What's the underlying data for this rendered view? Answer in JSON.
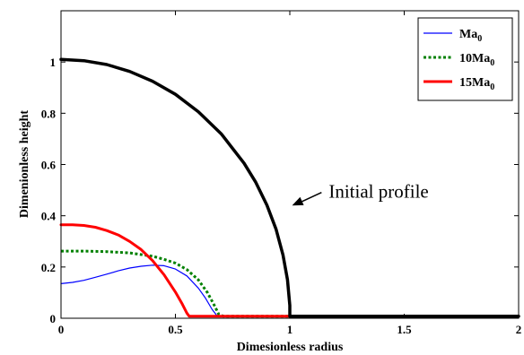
{
  "chart_data": {
    "type": "line",
    "xlabel": "Dimesionless radius",
    "ylabel": "Dimenionless height",
    "xlim": [
      0,
      2
    ],
    "ylim": [
      0,
      1.2
    ],
    "xticks": [
      0,
      0.5,
      1,
      1.5,
      2
    ],
    "xtick_labels": [
      "0",
      "0.5",
      "1",
      "1.5",
      "2"
    ],
    "yticks": [
      0,
      0.2,
      0.4,
      0.6,
      0.8,
      1
    ],
    "ytick_labels": [
      "0",
      "0.2",
      "0.4",
      "0.6",
      "0.8",
      "1"
    ],
    "grid": false,
    "legend_position": "top-right",
    "series": [
      {
        "name": "Ma",
        "sub": "0",
        "color": "#0000ff",
        "style": "solid",
        "width": 1.2,
        "x": [
          0,
          0.05,
          0.1,
          0.15,
          0.2,
          0.25,
          0.3,
          0.35,
          0.4,
          0.45,
          0.5,
          0.55,
          0.6,
          0.63,
          0.66,
          0.68,
          0.7,
          1,
          2
        ],
        "y": [
          0.135,
          0.14,
          0.148,
          0.16,
          0.172,
          0.185,
          0.196,
          0.203,
          0.207,
          0.205,
          0.192,
          0.165,
          0.118,
          0.08,
          0.035,
          0.012,
          0.008,
          0.008,
          0.008
        ]
      },
      {
        "name": "10Ma",
        "sub": "0",
        "color": "#008000",
        "style": "dotted",
        "width": 3,
        "x": [
          0,
          0.1,
          0.2,
          0.3,
          0.4,
          0.45,
          0.5,
          0.55,
          0.6,
          0.64,
          0.67,
          0.69,
          0.71,
          1,
          2
        ],
        "y": [
          0.262,
          0.262,
          0.26,
          0.255,
          0.242,
          0.23,
          0.215,
          0.19,
          0.15,
          0.1,
          0.05,
          0.015,
          0.008,
          0.008,
          0.008
        ]
      },
      {
        "name": "15Ma",
        "sub": "0",
        "color": "#ff0000",
        "style": "solid",
        "width": 3,
        "x": [
          0,
          0.05,
          0.1,
          0.15,
          0.2,
          0.25,
          0.3,
          0.35,
          0.4,
          0.45,
          0.5,
          0.53,
          0.55,
          0.56,
          0.57,
          2
        ],
        "y": [
          0.365,
          0.365,
          0.362,
          0.355,
          0.342,
          0.325,
          0.3,
          0.268,
          0.225,
          0.17,
          0.102,
          0.055,
          0.02,
          0.008,
          0.008,
          0.008
        ]
      },
      {
        "name": "",
        "color": "#000000",
        "style": "solid",
        "width": 3.5,
        "x": [
          0,
          0.1,
          0.2,
          0.3,
          0.4,
          0.5,
          0.6,
          0.7,
          0.8,
          0.85,
          0.9,
          0.94,
          0.97,
          0.99,
          1.0,
          1.0,
          2
        ],
        "y": [
          1.01,
          1.005,
          0.99,
          0.963,
          0.925,
          0.874,
          0.806,
          0.72,
          0.605,
          0.532,
          0.441,
          0.347,
          0.247,
          0.15,
          0.05,
          0.008,
          0.008
        ]
      }
    ],
    "annotation": {
      "text": "Initial profile",
      "point": [
        1.01,
        0.44
      ],
      "text_pos": [
        1.17,
        0.47
      ]
    }
  }
}
